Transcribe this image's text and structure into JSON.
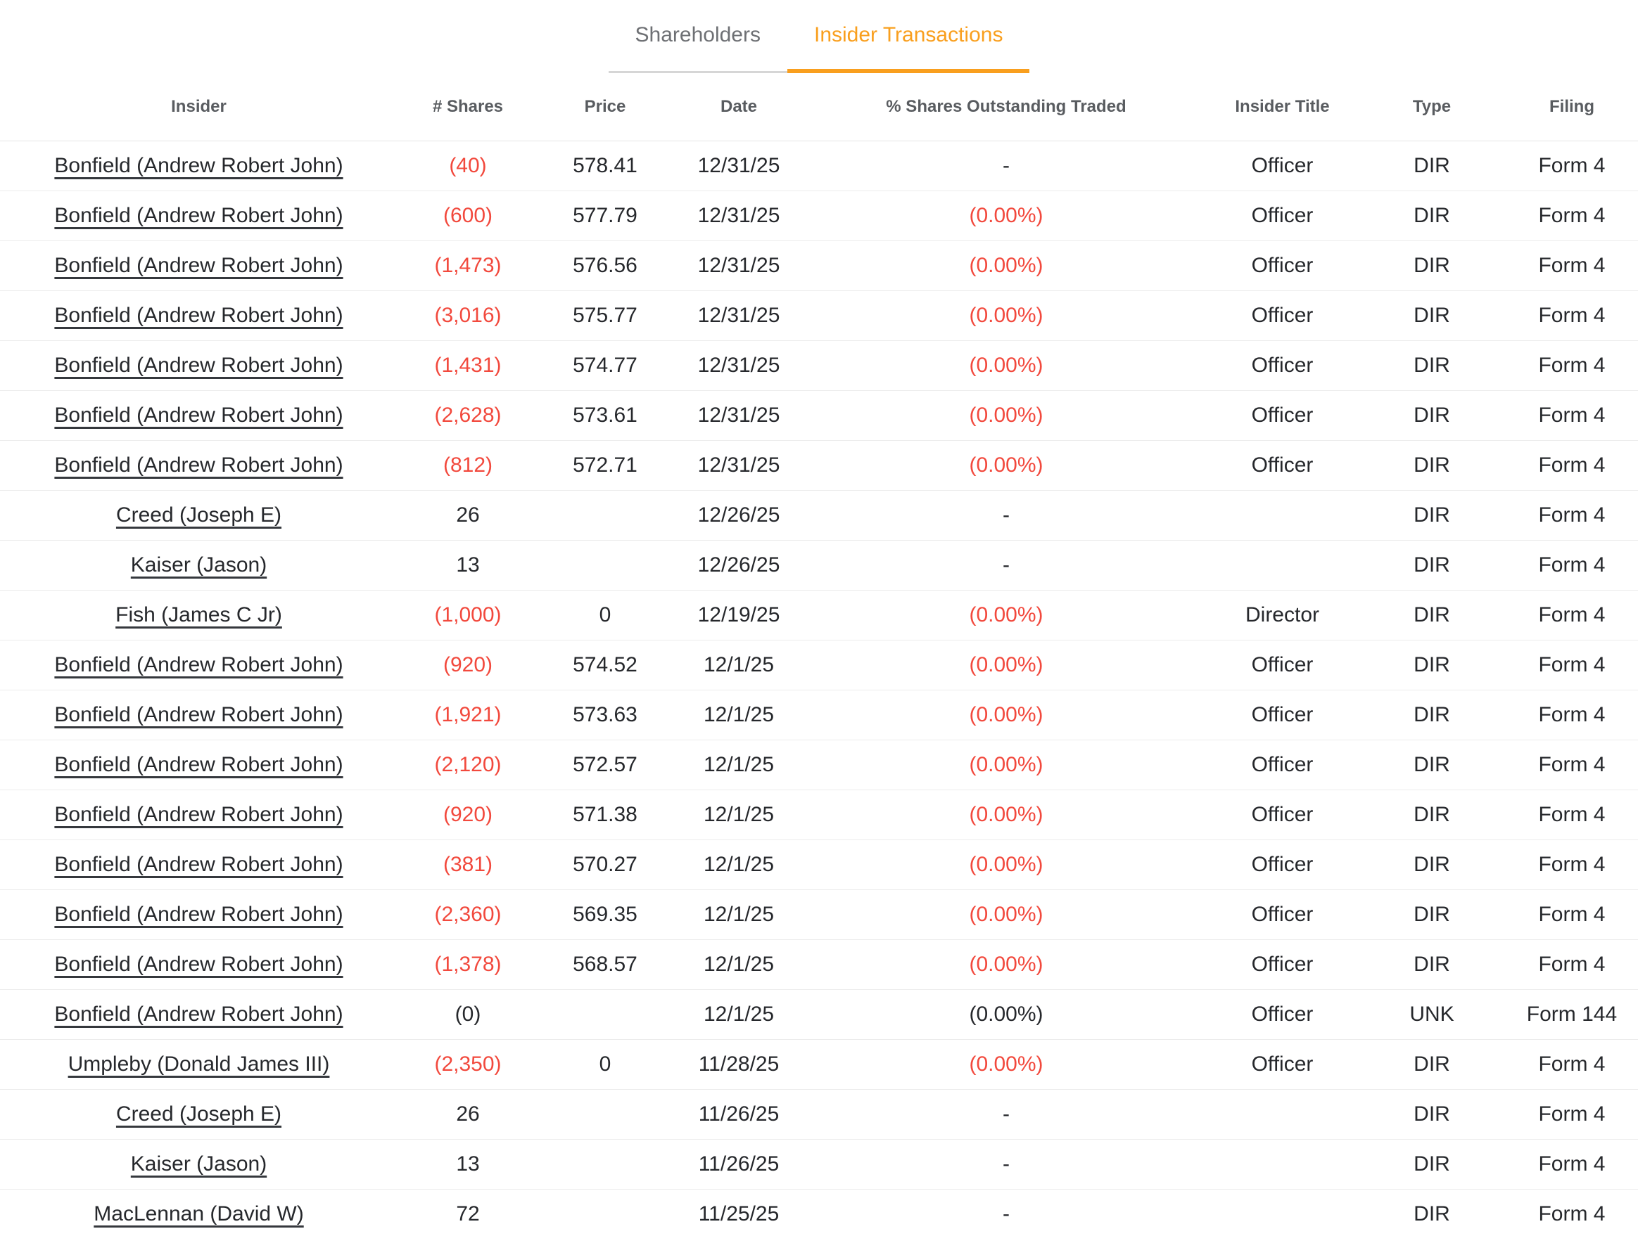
{
  "colors": {
    "accent_orange": "#F99F1E",
    "negative_red": "#F2493D",
    "inactive_tab_gray": "#6E7074",
    "header_text_gray": "#595C60"
  },
  "tabs": [
    {
      "label": "Shareholders",
      "active": false
    },
    {
      "label": "Insider Transactions",
      "active": true
    }
  ],
  "table": {
    "headers": [
      "Insider",
      "# Shares",
      "Price",
      "Date",
      "% Shares Outstanding Traded",
      "Insider Title",
      "Type",
      "Filing"
    ],
    "rows": [
      {
        "insider": "Bonfield (Andrew Robert John)",
        "shares": "(40)",
        "shares_neg": true,
        "price": "578.41",
        "date": "12/31/25",
        "pct": "-",
        "pct_neg": false,
        "title": "Officer",
        "type": "DIR",
        "filing": "Form 4"
      },
      {
        "insider": "Bonfield (Andrew Robert John)",
        "shares": "(600)",
        "shares_neg": true,
        "price": "577.79",
        "date": "12/31/25",
        "pct": "(0.00%)",
        "pct_neg": true,
        "title": "Officer",
        "type": "DIR",
        "filing": "Form 4"
      },
      {
        "insider": "Bonfield (Andrew Robert John)",
        "shares": "(1,473)",
        "shares_neg": true,
        "price": "576.56",
        "date": "12/31/25",
        "pct": "(0.00%)",
        "pct_neg": true,
        "title": "Officer",
        "type": "DIR",
        "filing": "Form 4"
      },
      {
        "insider": "Bonfield (Andrew Robert John)",
        "shares": "(3,016)",
        "shares_neg": true,
        "price": "575.77",
        "date": "12/31/25",
        "pct": "(0.00%)",
        "pct_neg": true,
        "title": "Officer",
        "type": "DIR",
        "filing": "Form 4"
      },
      {
        "insider": "Bonfield (Andrew Robert John)",
        "shares": "(1,431)",
        "shares_neg": true,
        "price": "574.77",
        "date": "12/31/25",
        "pct": "(0.00%)",
        "pct_neg": true,
        "title": "Officer",
        "type": "DIR",
        "filing": "Form 4"
      },
      {
        "insider": "Bonfield (Andrew Robert John)",
        "shares": "(2,628)",
        "shares_neg": true,
        "price": "573.61",
        "date": "12/31/25",
        "pct": "(0.00%)",
        "pct_neg": true,
        "title": "Officer",
        "type": "DIR",
        "filing": "Form 4"
      },
      {
        "insider": "Bonfield (Andrew Robert John)",
        "shares": "(812)",
        "shares_neg": true,
        "price": "572.71",
        "date": "12/31/25",
        "pct": "(0.00%)",
        "pct_neg": true,
        "title": "Officer",
        "type": "DIR",
        "filing": "Form 4"
      },
      {
        "insider": "Creed (Joseph E)",
        "shares": "26",
        "shares_neg": false,
        "price": "",
        "date": "12/26/25",
        "pct": "-",
        "pct_neg": false,
        "title": "",
        "type": "DIR",
        "filing": "Form 4"
      },
      {
        "insider": "Kaiser (Jason)",
        "shares": "13",
        "shares_neg": false,
        "price": "",
        "date": "12/26/25",
        "pct": "-",
        "pct_neg": false,
        "title": "",
        "type": "DIR",
        "filing": "Form 4"
      },
      {
        "insider": "Fish (James C Jr)",
        "shares": "(1,000)",
        "shares_neg": true,
        "price": "0",
        "date": "12/19/25",
        "pct": "(0.00%)",
        "pct_neg": true,
        "title": "Director",
        "type": "DIR",
        "filing": "Form 4"
      },
      {
        "insider": "Bonfield (Andrew Robert John)",
        "shares": "(920)",
        "shares_neg": true,
        "price": "574.52",
        "date": "12/1/25",
        "pct": "(0.00%)",
        "pct_neg": true,
        "title": "Officer",
        "type": "DIR",
        "filing": "Form 4"
      },
      {
        "insider": "Bonfield (Andrew Robert John)",
        "shares": "(1,921)",
        "shares_neg": true,
        "price": "573.63",
        "date": "12/1/25",
        "pct": "(0.00%)",
        "pct_neg": true,
        "title": "Officer",
        "type": "DIR",
        "filing": "Form 4"
      },
      {
        "insider": "Bonfield (Andrew Robert John)",
        "shares": "(2,120)",
        "shares_neg": true,
        "price": "572.57",
        "date": "12/1/25",
        "pct": "(0.00%)",
        "pct_neg": true,
        "title": "Officer",
        "type": "DIR",
        "filing": "Form 4"
      },
      {
        "insider": "Bonfield (Andrew Robert John)",
        "shares": "(920)",
        "shares_neg": true,
        "price": "571.38",
        "date": "12/1/25",
        "pct": "(0.00%)",
        "pct_neg": true,
        "title": "Officer",
        "type": "DIR",
        "filing": "Form 4"
      },
      {
        "insider": "Bonfield (Andrew Robert John)",
        "shares": "(381)",
        "shares_neg": true,
        "price": "570.27",
        "date": "12/1/25",
        "pct": "(0.00%)",
        "pct_neg": true,
        "title": "Officer",
        "type": "DIR",
        "filing": "Form 4"
      },
      {
        "insider": "Bonfield (Andrew Robert John)",
        "shares": "(2,360)",
        "shares_neg": true,
        "price": "569.35",
        "date": "12/1/25",
        "pct": "(0.00%)",
        "pct_neg": true,
        "title": "Officer",
        "type": "DIR",
        "filing": "Form 4"
      },
      {
        "insider": "Bonfield (Andrew Robert John)",
        "shares": "(1,378)",
        "shares_neg": true,
        "price": "568.57",
        "date": "12/1/25",
        "pct": "(0.00%)",
        "pct_neg": true,
        "title": "Officer",
        "type": "DIR",
        "filing": "Form 4"
      },
      {
        "insider": "Bonfield (Andrew Robert John)",
        "shares": "(0)",
        "shares_neg": false,
        "price": "",
        "date": "12/1/25",
        "pct": "(0.00%)",
        "pct_neg": false,
        "title": "Officer",
        "type": "UNK",
        "filing": "Form 144"
      },
      {
        "insider": "Umpleby (Donald James III)",
        "shares": "(2,350)",
        "shares_neg": true,
        "price": "0",
        "date": "11/28/25",
        "pct": "(0.00%)",
        "pct_neg": true,
        "title": "Officer",
        "type": "DIR",
        "filing": "Form 4"
      },
      {
        "insider": "Creed (Joseph E)",
        "shares": "26",
        "shares_neg": false,
        "price": "",
        "date": "11/26/25",
        "pct": "-",
        "pct_neg": false,
        "title": "",
        "type": "DIR",
        "filing": "Form 4"
      },
      {
        "insider": "Kaiser (Jason)",
        "shares": "13",
        "shares_neg": false,
        "price": "",
        "date": "11/26/25",
        "pct": "-",
        "pct_neg": false,
        "title": "",
        "type": "DIR",
        "filing": "Form 4"
      },
      {
        "insider": "MacLennan (David W)",
        "shares": "72",
        "shares_neg": false,
        "price": "",
        "date": "11/25/25",
        "pct": "-",
        "pct_neg": false,
        "title": "",
        "type": "DIR",
        "filing": "Form 4"
      }
    ]
  }
}
